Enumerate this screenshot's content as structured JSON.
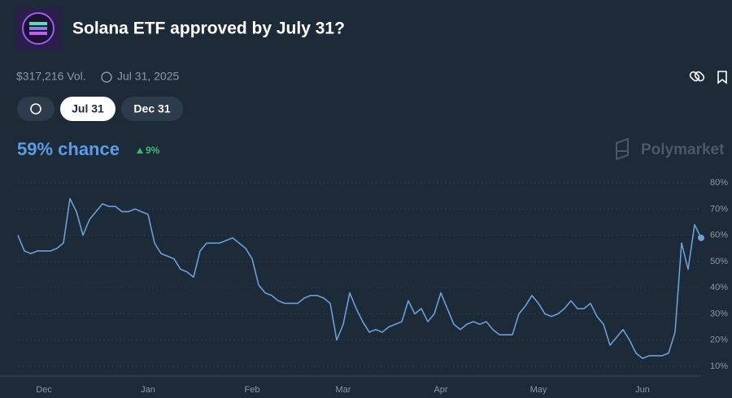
{
  "header": {
    "title": "Solana ETF approved by July 31?",
    "volume": "$317,216 Vol.",
    "end_date": "Jul 31, 2025"
  },
  "tabs": [
    "Jul 31",
    "Dec 31"
  ],
  "summary": {
    "chance": "59% chance",
    "change": "9%",
    "brand": "Polymarket"
  },
  "chart_data": {
    "type": "line",
    "categories": [
      null,
      null,
      null,
      null,
      "Dec",
      null,
      null,
      null,
      null,
      null,
      null,
      null,
      null,
      null,
      null,
      null,
      null,
      null,
      null,
      null,
      "Jan",
      null,
      null,
      null,
      null,
      null,
      null,
      null,
      null,
      null,
      null,
      null,
      null,
      null,
      null,
      null,
      "Feb",
      null,
      null,
      null,
      null,
      null,
      null,
      null,
      null,
      null,
      null,
      null,
      null,
      null,
      "Mar",
      null,
      null,
      null,
      null,
      null,
      null,
      null,
      null,
      null,
      null,
      null,
      null,
      null,
      null,
      "Apr",
      null,
      null,
      null,
      null,
      null,
      null,
      null,
      null,
      null,
      null,
      null,
      null,
      null,
      null,
      "May",
      null,
      null,
      null,
      null,
      null,
      null,
      null,
      null,
      null,
      null,
      null,
      null,
      null,
      null,
      null,
      "Jun",
      null,
      null,
      null,
      null,
      null,
      null,
      null,
      null,
      null
    ],
    "series": [
      {
        "name": "Jul 31",
        "color": "#6a9fd8",
        "values": [
          60,
          54,
          53,
          54,
          54,
          54,
          55,
          57,
          74,
          69,
          60,
          66,
          69,
          72,
          71,
          71,
          69,
          69,
          70,
          69,
          68,
          57,
          53,
          52,
          51,
          47,
          46,
          44,
          54,
          57,
          57,
          57,
          58,
          59,
          57,
          55,
          51,
          41,
          38,
          37,
          35,
          34,
          34,
          34,
          36,
          37,
          37,
          36,
          34,
          20,
          26,
          38,
          32,
          27,
          23,
          24,
          23,
          25,
          26,
          27,
          35,
          30,
          32,
          27,
          30,
          38,
          32,
          26,
          24,
          26,
          27,
          26,
          27,
          24,
          22,
          22,
          22,
          30,
          33,
          37,
          34,
          30,
          29,
          30,
          32,
          35,
          32,
          32,
          34,
          29,
          26,
          18,
          21,
          24,
          20,
          15,
          13,
          14,
          14,
          14,
          15,
          23,
          57,
          47,
          64,
          59
        ]
      }
    ],
    "ylim": [
      5,
      85
    ],
    "yticks": [
      {
        "value": 10,
        "label": "10%"
      },
      {
        "value": 20,
        "label": "20%"
      },
      {
        "value": 30,
        "label": "30%"
      },
      {
        "value": 40,
        "label": "40%"
      },
      {
        "value": 50,
        "label": "50%"
      },
      {
        "value": 60,
        "label": "60%"
      },
      {
        "value": 70,
        "label": "70%"
      },
      {
        "value": 80,
        "label": "80%"
      }
    ],
    "grid": true
  }
}
